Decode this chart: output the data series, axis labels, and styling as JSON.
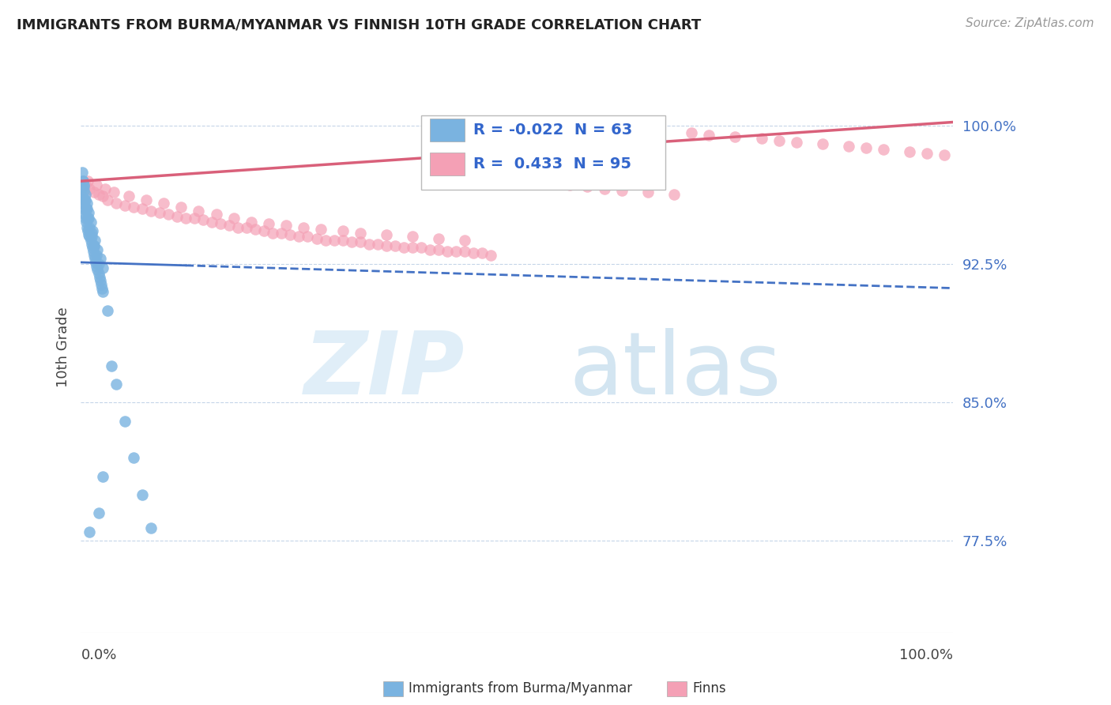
{
  "title": "IMMIGRANTS FROM BURMA/MYANMAR VS FINNISH 10TH GRADE CORRELATION CHART",
  "source": "Source: ZipAtlas.com",
  "ylabel": "10th Grade",
  "y_tick_labels": [
    "77.5%",
    "85.0%",
    "92.5%",
    "100.0%"
  ],
  "y_tick_values": [
    0.775,
    0.85,
    0.925,
    1.0
  ],
  "xlim": [
    0.0,
    1.0
  ],
  "ylim": [
    0.725,
    1.035
  ],
  "blue_color": "#7ab3e0",
  "pink_color": "#f4a0b5",
  "blue_line_color": "#4472c4",
  "pink_line_color": "#d9607a",
  "legend_R_blue": "-0.022",
  "legend_N_blue": "63",
  "legend_R_pink": "0.433",
  "legend_N_pink": "95",
  "watermark_ZIP": "ZIP",
  "watermark_atlas": "atlas",
  "blue_scatter_x": [
    0.001,
    0.002,
    0.003,
    0.004,
    0.005,
    0.006,
    0.007,
    0.008,
    0.009,
    0.01,
    0.011,
    0.012,
    0.013,
    0.014,
    0.015,
    0.016,
    0.017,
    0.018,
    0.019,
    0.02,
    0.021,
    0.022,
    0.023,
    0.024,
    0.025,
    0.002,
    0.003,
    0.004,
    0.006,
    0.008,
    0.01,
    0.012,
    0.015,
    0.018,
    0.02,
    0.003,
    0.005,
    0.007,
    0.009,
    0.011,
    0.013,
    0.016,
    0.019,
    0.022,
    0.025,
    0.03,
    0.035,
    0.04,
    0.05,
    0.06,
    0.07,
    0.08,
    0.001,
    0.002,
    0.003,
    0.005,
    0.007,
    0.009,
    0.012,
    0.015,
    0.01,
    0.02,
    0.025
  ],
  "blue_scatter_y": [
    0.962,
    0.958,
    0.955,
    0.952,
    0.95,
    0.948,
    0.945,
    0.943,
    0.941,
    0.94,
    0.938,
    0.936,
    0.934,
    0.932,
    0.93,
    0.928,
    0.926,
    0.924,
    0.922,
    0.92,
    0.918,
    0.916,
    0.914,
    0.912,
    0.91,
    0.97,
    0.965,
    0.96,
    0.955,
    0.95,
    0.945,
    0.94,
    0.935,
    0.93,
    0.925,
    0.968,
    0.963,
    0.958,
    0.953,
    0.948,
    0.943,
    0.938,
    0.933,
    0.928,
    0.923,
    0.9,
    0.87,
    0.86,
    0.84,
    0.82,
    0.8,
    0.782,
    0.975,
    0.97,
    0.967,
    0.96,
    0.955,
    0.95,
    0.942,
    0.935,
    0.78,
    0.79,
    0.81
  ],
  "pink_scatter_x": [
    0.005,
    0.01,
    0.015,
    0.02,
    0.025,
    0.03,
    0.04,
    0.05,
    0.06,
    0.07,
    0.08,
    0.09,
    0.1,
    0.11,
    0.12,
    0.13,
    0.14,
    0.15,
    0.16,
    0.17,
    0.18,
    0.19,
    0.2,
    0.21,
    0.22,
    0.23,
    0.24,
    0.25,
    0.26,
    0.27,
    0.28,
    0.29,
    0.3,
    0.31,
    0.32,
    0.33,
    0.34,
    0.35,
    0.36,
    0.37,
    0.38,
    0.39,
    0.4,
    0.41,
    0.42,
    0.43,
    0.44,
    0.45,
    0.46,
    0.47,
    0.48,
    0.5,
    0.52,
    0.54,
    0.56,
    0.58,
    0.6,
    0.62,
    0.65,
    0.68,
    0.7,
    0.72,
    0.75,
    0.78,
    0.8,
    0.82,
    0.85,
    0.88,
    0.9,
    0.92,
    0.95,
    0.97,
    0.99,
    0.008,
    0.018,
    0.028,
    0.038,
    0.055,
    0.075,
    0.095,
    0.115,
    0.135,
    0.155,
    0.175,
    0.195,
    0.215,
    0.235,
    0.255,
    0.275,
    0.3,
    0.32,
    0.35,
    0.38,
    0.41,
    0.44
  ],
  "pink_scatter_y": [
    0.968,
    0.966,
    0.964,
    0.963,
    0.962,
    0.96,
    0.958,
    0.957,
    0.956,
    0.955,
    0.954,
    0.953,
    0.952,
    0.951,
    0.95,
    0.95,
    0.949,
    0.948,
    0.947,
    0.946,
    0.945,
    0.945,
    0.944,
    0.943,
    0.942,
    0.942,
    0.941,
    0.94,
    0.94,
    0.939,
    0.938,
    0.938,
    0.938,
    0.937,
    0.937,
    0.936,
    0.936,
    0.935,
    0.935,
    0.934,
    0.934,
    0.934,
    0.933,
    0.933,
    0.932,
    0.932,
    0.932,
    0.931,
    0.931,
    0.93,
    0.972,
    0.971,
    0.97,
    0.969,
    0.968,
    0.967,
    0.966,
    0.965,
    0.964,
    0.963,
    0.996,
    0.995,
    0.994,
    0.993,
    0.992,
    0.991,
    0.99,
    0.989,
    0.988,
    0.987,
    0.986,
    0.985,
    0.984,
    0.97,
    0.968,
    0.966,
    0.964,
    0.962,
    0.96,
    0.958,
    0.956,
    0.954,
    0.952,
    0.95,
    0.948,
    0.947,
    0.946,
    0.945,
    0.944,
    0.943,
    0.942,
    0.941,
    0.94,
    0.939,
    0.938
  ],
  "blue_line_x": [
    0.0,
    0.15,
    0.15,
    1.0
  ],
  "blue_line_y_start": 0.926,
  "blue_line_y_end": 0.912,
  "pink_line_y_start": 0.97,
  "pink_line_y_end": 1.002
}
